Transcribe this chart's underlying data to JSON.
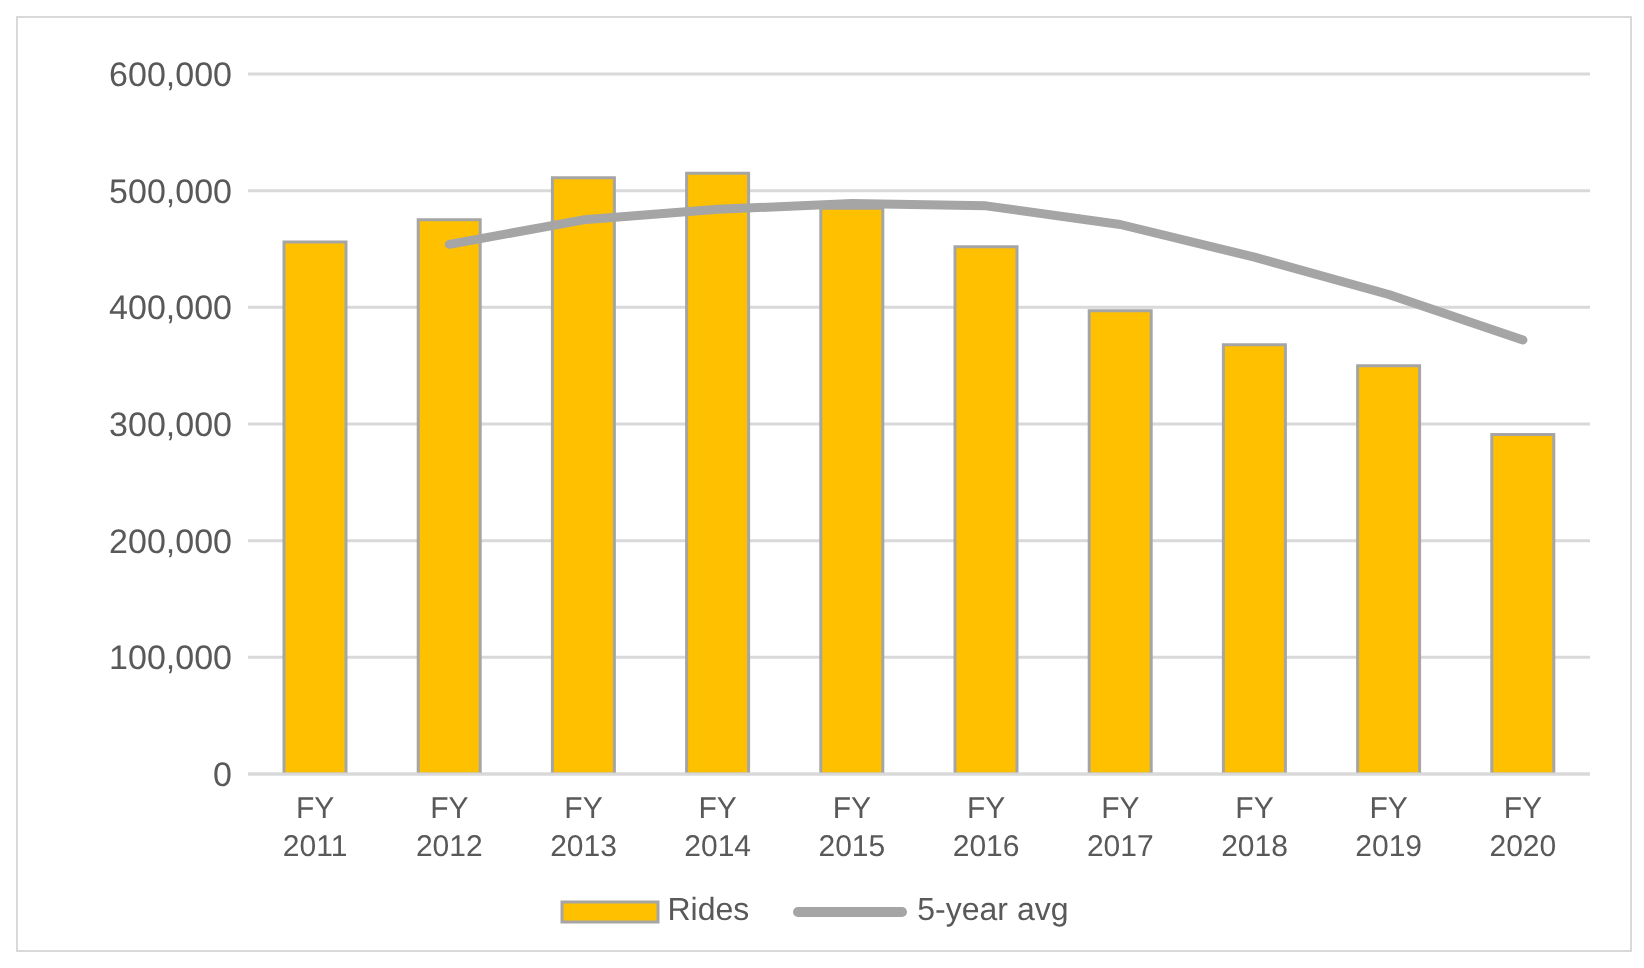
{
  "chart_data": {
    "type": "bar",
    "categories": [
      "FY 2011",
      "FY 2012",
      "FY 2013",
      "FY 2014",
      "FY 2015",
      "FY 2016",
      "FY 2017",
      "FY 2018",
      "FY 2019",
      "FY 2020"
    ],
    "series": [
      {
        "name": "Rides",
        "color": "#ffc000",
        "values": [
          456000,
          475000,
          511000,
          515000,
          485000,
          452000,
          397000,
          368000,
          350000,
          291000
        ]
      },
      {
        "name": "5-year avg",
        "type": "line",
        "color": "#a5a5a5",
        "values": [
          null,
          454000,
          475000,
          484000,
          489000,
          487000,
          471000,
          443000,
          411000,
          372000
        ]
      }
    ],
    "ylim": [
      0,
      600000
    ],
    "yticks": [
      0,
      {
        "value": 100000,
        "label": "100,000"
      },
      {
        "value": 200000,
        "label": "200,000"
      },
      {
        "value": 300000,
        "label": "300,000"
      },
      {
        "value": 400000,
        "label": "400,000"
      },
      {
        "value": 500000,
        "label": "500,000"
      },
      {
        "value": 600000,
        "label": "600,000"
      }
    ],
    "grid": "y",
    "legend": "bottom",
    "marker": "none"
  }
}
